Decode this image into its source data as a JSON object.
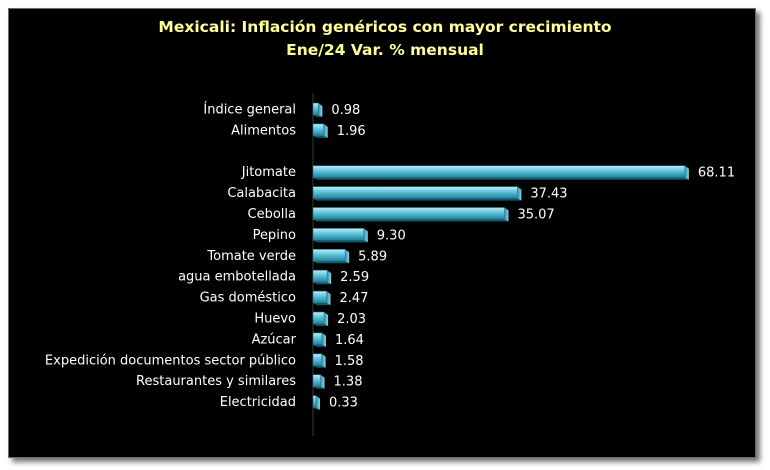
{
  "chart_data": {
    "type": "bar",
    "orientation": "horizontal",
    "title": "Mexicali: Inflación genéricos con mayor crecimiento",
    "subtitle": "Ene/24 Var. % mensual",
    "categories": [
      "Índice general",
      "Alimentos",
      "",
      "Jitomate",
      "Calabacita",
      "Cebolla",
      "Pepino",
      "Tomate verde",
      "agua embotellada",
      "Gas doméstico",
      "Huevo",
      "Azúcar",
      "Expedición documentos sector público",
      "Restaurantes y similares",
      "Electricidad"
    ],
    "values": [
      0.98,
      1.96,
      null,
      68.11,
      37.43,
      35.07,
      9.3,
      5.89,
      2.59,
      2.47,
      2.03,
      1.64,
      1.58,
      1.38,
      0.33
    ],
    "data_labels": [
      "0.98",
      "1.96",
      "",
      "68.11",
      "37.43",
      "35.07",
      "9.30",
      "5.89",
      "2.59",
      "2.47",
      "2.03",
      "1.64",
      "1.58",
      "1.38",
      "0.33"
    ],
    "xlim": [
      0,
      70
    ],
    "grid": false,
    "legend": "none",
    "colors": {
      "background": "#000000",
      "bar": "#4fb8d0",
      "title": "#ffff99",
      "labels": "#ffffff"
    }
  }
}
